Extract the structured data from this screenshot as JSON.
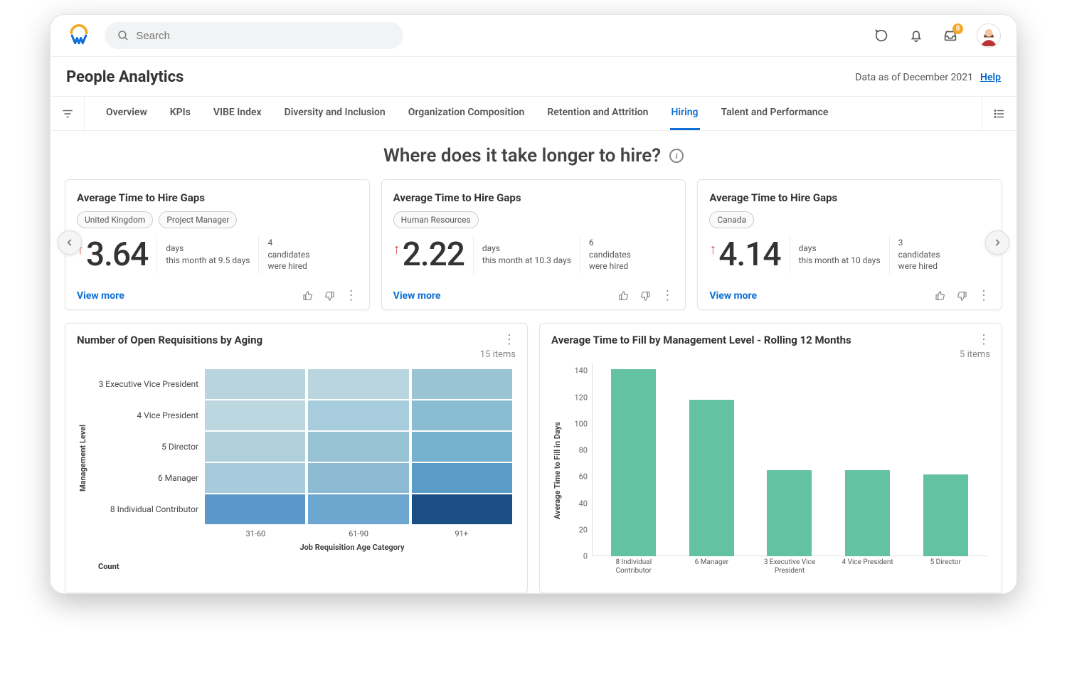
{
  "topbar": {
    "search_placeholder": "Search",
    "inbox_badge": "8"
  },
  "header": {
    "title": "People Analytics",
    "data_as_of": "Data as of December 2021",
    "help": "Help"
  },
  "tabs": {
    "items": [
      {
        "label": "Overview"
      },
      {
        "label": "KPIs"
      },
      {
        "label": "VIBE Index"
      },
      {
        "label": "Diversity and Inclusion"
      },
      {
        "label": "Organization Composition"
      },
      {
        "label": "Retention and Attrition"
      },
      {
        "label": "Hiring",
        "active": true
      },
      {
        "label": "Talent and Performance"
      }
    ]
  },
  "section": {
    "title": "Where does it take longer to hire?"
  },
  "cards": [
    {
      "title": "Average Time to Hire Gaps",
      "chips": [
        "United Kingdom",
        "Project Manager"
      ],
      "value": "3.64",
      "direction": "up",
      "unit_label": "days",
      "context_line": "this month at 9.5 days",
      "count": "4",
      "count_label1": "candidates",
      "count_label2": "were hired",
      "view_more": "View more"
    },
    {
      "title": "Average Time to Hire Gaps",
      "chips": [
        "Human Resources"
      ],
      "value": "2.22",
      "direction": "up",
      "unit_label": "days",
      "context_line": "this month at 10.3 days",
      "count": "6",
      "count_label1": "candidates",
      "count_label2": "were hired",
      "view_more": "View more"
    },
    {
      "title": "Average Time to Hire Gaps",
      "chips": [
        "Canada"
      ],
      "value": "4.14",
      "direction": "up",
      "unit_label": "days",
      "context_line": "this month at 10 days",
      "count": "3",
      "count_label1": "candidates",
      "count_label2": "were hired",
      "view_more": "View more"
    }
  ],
  "heatmap": {
    "title": "Number of Open Requisitions by Aging",
    "items_text": "15 items",
    "y_label": "Management Level",
    "x_label": "Job Requisition Age Category",
    "legend_title": "Count",
    "row_labels": [
      "3 Executive Vice President",
      "4 Vice President",
      "5 Director",
      "6 Manager",
      "8 Individual Contributor"
    ],
    "col_labels": [
      "31-60",
      "61-90",
      "91+"
    ],
    "cell_colors": [
      [
        "#b8d4dd",
        "#b9d5de",
        "#9ac4d2"
      ],
      [
        "#bcd7df",
        "#a7ccdb",
        "#8bbdd2"
      ],
      [
        "#b0d0dd",
        "#96c2d4",
        "#76b2cf"
      ],
      [
        "#a8cbdb",
        "#8cbbd3",
        "#5b9cc8"
      ],
      [
        "#5b98c9",
        "#6ca7cf",
        "#1a4e85"
      ]
    ]
  },
  "barchart": {
    "title": "Average Time to Fill by Management Level - Rolling 12 Months",
    "items_text": "5 items",
    "y_label": "Average Time to Fill in Days",
    "y_ticks": [
      0,
      20,
      40,
      60,
      80,
      100,
      120,
      140
    ],
    "y_max": 145,
    "bar_color": "#63c2a1",
    "bars": [
      {
        "label": "8 Individual Contributor",
        "value": 141
      },
      {
        "label": "6 Manager",
        "value": 118
      },
      {
        "label": "3 Executive Vice President",
        "value": 65
      },
      {
        "label": "4 Vice President",
        "value": 65
      },
      {
        "label": "5 Director",
        "value": 62
      }
    ]
  }
}
